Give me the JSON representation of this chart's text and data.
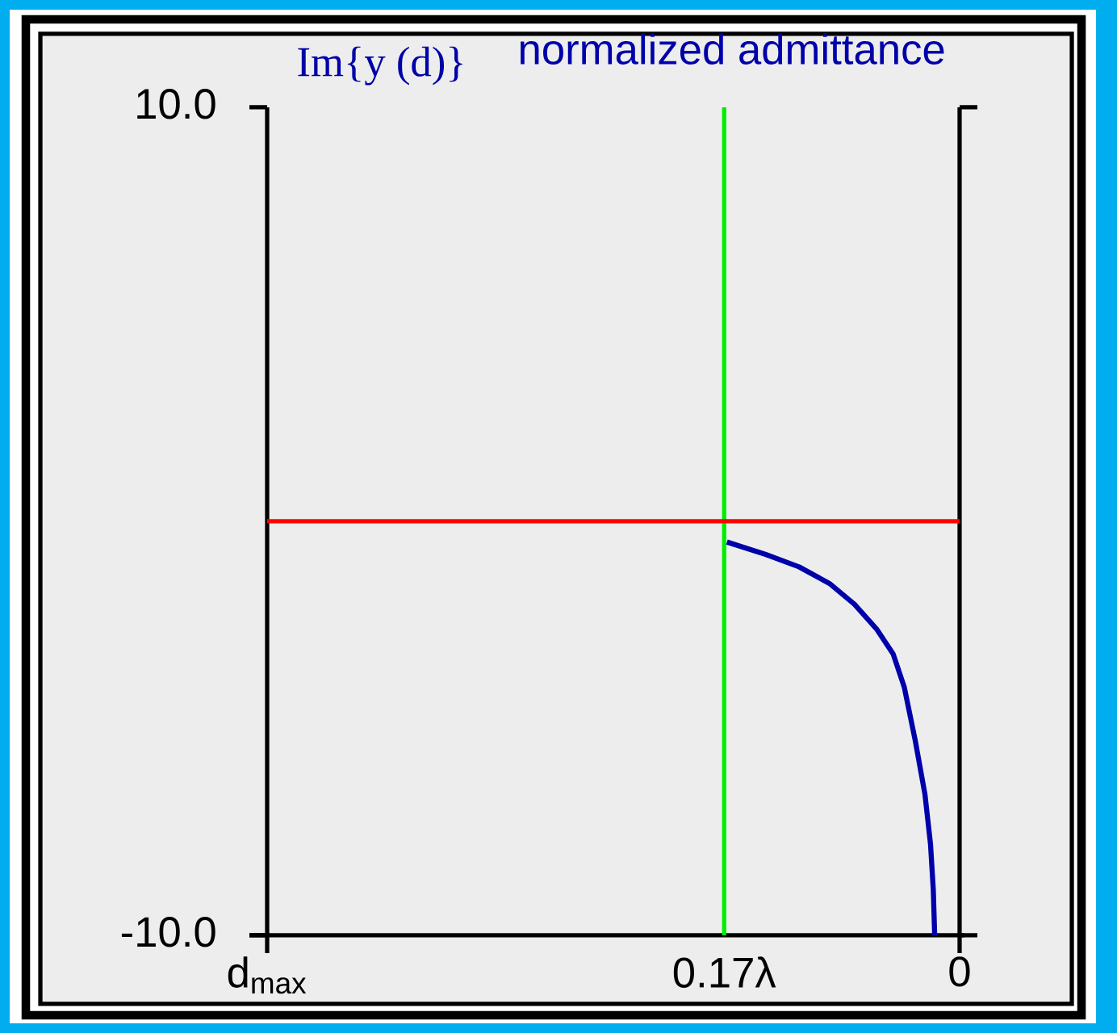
{
  "chart_data": {
    "type": "line",
    "title": "normalized admittance",
    "ylabel": "Im{y (d)}",
    "xlim": [
      0.5,
      0
    ],
    "ylim": [
      -10,
      10
    ],
    "xticks": [
      {
        "value": 0.5,
        "label": "d$_{max}$"
      },
      {
        "value": 0.17,
        "label": "0.17λ"
      },
      0
    ],
    "yticks": [
      {
        "value": 10,
        "label": "10.0"
      },
      {
        "value": -10,
        "label": "-10.0"
      }
    ],
    "x": [
      0.168,
      0.14,
      0.116,
      0.094,
      0.076,
      0.06,
      0.048,
      0.04,
      0.032,
      0.025,
      0.021,
      0.019,
      0.018
    ],
    "values": [
      -0.5,
      -0.8,
      -1.1,
      -1.5,
      -2.0,
      -2.6,
      -3.2,
      -4.0,
      -5.3,
      -6.6,
      -7.8,
      -8.9,
      -10.0
    ],
    "color": "#0000aa",
    "ref_lines": [
      {
        "axis": "x",
        "value": 0.17,
        "color": "#00ee00"
      },
      {
        "axis": "y",
        "value": 0,
        "color": "#ff0000"
      }
    ]
  }
}
